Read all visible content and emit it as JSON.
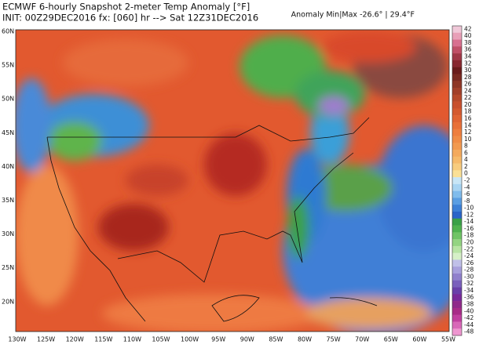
{
  "header": {
    "title": "ECMWF 6-hourly Snapshot 2-meter Temp Anomaly [°F]",
    "subtitle": "INIT: 00Z29DEC2016 fx: [060] hr --> Sat 12Z31DEC2016",
    "anomaly": "Anomaly Min|Max -26.6° | 29.4°F"
  },
  "map": {
    "lat_labels": [
      "60N",
      "55N",
      "50N",
      "45N",
      "40N",
      "35N",
      "30N",
      "25N",
      "20N"
    ],
    "lon_labels": [
      "130W",
      "125W",
      "120W",
      "115W",
      "110W",
      "105W",
      "100W",
      "95W",
      "90W",
      "85W",
      "80W",
      "75W",
      "70W",
      "65W",
      "60W",
      "55W"
    ]
  },
  "colorbar": {
    "labels": [
      "42",
      "40",
      "38",
      "36",
      "34",
      "32",
      "30",
      "28",
      "26",
      "24",
      "22",
      "20",
      "18",
      "16",
      "14",
      "12",
      "10",
      "8",
      "6",
      "4",
      "2",
      "0",
      "-2",
      "-4",
      "-6",
      "-8",
      "-10",
      "-12",
      "-14",
      "-16",
      "-18",
      "-20",
      "-22",
      "-24",
      "-26",
      "-28",
      "-30",
      "-32",
      "-34",
      "-36",
      "-38",
      "-40",
      "-42",
      "-44",
      "-48"
    ]
  }
}
